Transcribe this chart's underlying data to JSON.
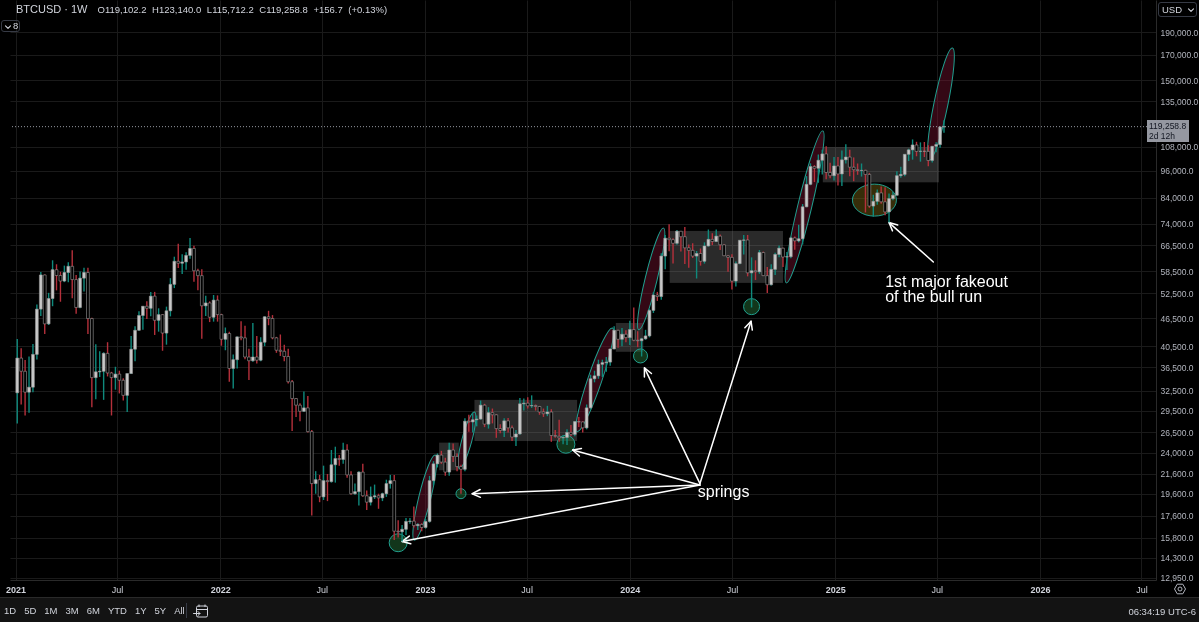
{
  "chart_data": {
    "type": "candlestick",
    "title": "BTCUSD · 1W",
    "subtitle": "O119,102.2 H123,140.0 L115,712.2 C119,258.8 +156.7 (+0.13%)",
    "x": [
      "2021-01-04",
      "2021-01-11",
      "2021-01-18",
      "2021-01-25",
      "2021-02-01",
      "2021-02-08",
      "2021-02-15",
      "2021-02-22",
      "2021-03-01",
      "2021-03-08",
      "2021-03-15",
      "2021-03-22",
      "2021-03-29",
      "2021-04-05",
      "2021-04-12",
      "2021-04-19",
      "2021-04-26",
      "2021-05-03",
      "2021-05-10",
      "2021-05-17",
      "2021-05-24",
      "2021-05-31",
      "2021-06-07",
      "2021-06-14",
      "2021-06-21",
      "2021-06-28",
      "2021-07-05",
      "2021-07-12",
      "2021-07-19",
      "2021-07-26",
      "2021-08-02",
      "2021-08-09",
      "2021-08-16",
      "2021-08-23",
      "2021-08-30",
      "2021-09-06",
      "2021-09-13",
      "2021-09-20",
      "2021-09-27",
      "2021-10-04",
      "2021-10-11",
      "2021-10-18",
      "2021-10-25",
      "2021-11-01",
      "2021-11-08",
      "2021-11-15",
      "2021-11-22",
      "2021-11-29",
      "2021-12-06",
      "2021-12-13",
      "2021-12-20",
      "2021-12-27",
      "2022-01-03",
      "2022-01-10",
      "2022-01-17",
      "2022-01-24",
      "2022-01-31",
      "2022-02-07",
      "2022-02-14",
      "2022-02-21",
      "2022-02-28",
      "2022-03-07",
      "2022-03-14",
      "2022-03-21",
      "2022-03-28",
      "2022-04-04",
      "2022-04-11",
      "2022-04-18",
      "2022-04-25",
      "2022-05-02",
      "2022-05-09",
      "2022-05-16",
      "2022-05-23",
      "2022-05-30",
      "2022-06-06",
      "2022-06-13",
      "2022-06-20",
      "2022-06-27",
      "2022-07-04",
      "2022-07-11",
      "2022-07-18",
      "2022-07-25",
      "2022-08-01",
      "2022-08-08",
      "2022-08-15",
      "2022-08-22",
      "2022-08-29",
      "2022-09-05",
      "2022-09-12",
      "2022-09-19",
      "2022-09-26",
      "2022-10-03",
      "2022-10-10",
      "2022-10-17",
      "2022-10-24",
      "2022-10-31",
      "2022-11-07",
      "2022-11-14",
      "2022-11-21",
      "2022-11-28",
      "2022-12-05",
      "2022-12-12",
      "2022-12-19",
      "2022-12-26",
      "2023-01-02",
      "2023-01-09",
      "2023-01-16",
      "2023-01-23",
      "2023-01-30",
      "2023-02-06",
      "2023-02-13",
      "2023-02-20",
      "2023-02-27",
      "2023-03-06",
      "2023-03-13",
      "2023-03-20",
      "2023-03-27",
      "2023-04-03",
      "2023-04-10",
      "2023-04-17",
      "2023-04-24",
      "2023-05-01",
      "2023-05-08",
      "2023-05-15",
      "2023-05-22",
      "2023-05-29",
      "2023-06-05",
      "2023-06-12",
      "2023-06-19",
      "2023-06-26",
      "2023-07-03",
      "2023-07-10",
      "2023-07-17",
      "2023-07-24",
      "2023-07-31",
      "2023-08-07",
      "2023-08-14",
      "2023-08-21",
      "2023-08-28",
      "2023-09-04",
      "2023-09-11",
      "2023-09-18",
      "2023-09-25",
      "2023-10-02",
      "2023-10-09",
      "2023-10-16",
      "2023-10-23",
      "2023-10-30",
      "2023-11-06",
      "2023-11-13",
      "2023-11-20",
      "2023-11-27",
      "2023-12-04",
      "2023-12-11",
      "2023-12-18",
      "2023-12-25",
      "2024-01-01",
      "2024-01-08",
      "2024-01-15",
      "2024-01-22",
      "2024-01-29",
      "2024-02-05",
      "2024-02-12",
      "2024-02-19",
      "2024-02-26",
      "2024-03-04",
      "2024-03-11",
      "2024-03-18",
      "2024-03-25",
      "2024-04-01",
      "2024-04-08",
      "2024-04-15",
      "2024-04-22",
      "2024-04-29",
      "2024-05-06",
      "2024-05-13",
      "2024-05-20",
      "2024-05-27",
      "2024-06-03",
      "2024-06-10",
      "2024-06-17",
      "2024-06-24",
      "2024-07-01",
      "2024-07-08",
      "2024-07-15",
      "2024-07-22",
      "2024-07-29",
      "2024-08-05",
      "2024-08-12",
      "2024-08-19",
      "2024-08-26",
      "2024-09-02",
      "2024-09-09",
      "2024-09-16",
      "2024-09-23",
      "2024-09-30",
      "2024-10-07",
      "2024-10-14",
      "2024-10-21",
      "2024-10-28",
      "2024-11-04",
      "2024-11-11",
      "2024-11-18",
      "2024-11-25",
      "2024-12-02",
      "2024-12-09",
      "2024-12-16",
      "2024-12-23",
      "2024-12-30",
      "2025-01-06",
      "2025-01-13",
      "2025-01-20",
      "2025-01-27",
      "2025-02-03",
      "2025-02-10",
      "2025-02-17",
      "2025-02-24",
      "2025-03-03",
      "2025-03-10",
      "2025-03-17",
      "2025-03-24",
      "2025-03-31",
      "2025-04-07",
      "2025-04-14",
      "2025-04-21",
      "2025-04-28",
      "2025-05-05",
      "2025-05-12",
      "2025-05-19",
      "2025-05-26",
      "2025-06-02",
      "2025-06-09",
      "2025-06-16",
      "2025-06-23",
      "2025-06-30",
      "2025-07-07",
      "2025-07-14"
    ],
    "ohlc": [
      [
        32200,
        41950,
        27700,
        38200
      ],
      [
        38200,
        40100,
        30400,
        35800
      ],
      [
        35800,
        37850,
        28800,
        32300
      ],
      [
        32300,
        38500,
        29200,
        33100
      ],
      [
        33100,
        40950,
        32300,
        38900
      ],
      [
        38900,
        49700,
        37950,
        48600
      ],
      [
        48600,
        58350,
        47000,
        57500
      ],
      [
        57500,
        57600,
        43000,
        45200
      ],
      [
        45200,
        52650,
        44950,
        51200
      ],
      [
        51200,
        61800,
        49300,
        59000
      ],
      [
        59000,
        60600,
        53300,
        57350
      ],
      [
        57350,
        58400,
        50400,
        55800
      ],
      [
        55800,
        60200,
        55500,
        58200
      ],
      [
        58200,
        61200,
        55500,
        60000
      ],
      [
        60000,
        64900,
        51300,
        56200
      ],
      [
        56200,
        57500,
        47500,
        49000
      ],
      [
        49000,
        58500,
        48800,
        56600
      ],
      [
        56600,
        59600,
        53000,
        58200
      ],
      [
        58200,
        59600,
        43000,
        46400
      ],
      [
        46400,
        46600,
        30000,
        34700
      ],
      [
        34700,
        40900,
        31200,
        35700
      ],
      [
        35700,
        39500,
        34800,
        35800
      ],
      [
        35800,
        39300,
        31100,
        39100
      ],
      [
        39100,
        41300,
        34900,
        35500
      ],
      [
        35500,
        35700,
        28800,
        34700
      ],
      [
        34700,
        36600,
        32700,
        35300
      ],
      [
        35300,
        35900,
        32100,
        34250
      ],
      [
        34250,
        34600,
        31000,
        31800
      ],
      [
        31800,
        35400,
        29300,
        35400
      ],
      [
        35400,
        42600,
        35300,
        39900
      ],
      [
        39900,
        44700,
        37600,
        43800
      ],
      [
        43800,
        48100,
        43700,
        47100
      ],
      [
        47100,
        49300,
        43900,
        49300
      ],
      [
        49300,
        50500,
        46300,
        48800
      ],
      [
        48800,
        52900,
        46900,
        51800
      ],
      [
        51800,
        52900,
        42800,
        46000
      ],
      [
        46000,
        48800,
        43500,
        47300
      ],
      [
        47300,
        47400,
        39600,
        43200
      ],
      [
        43200,
        49200,
        40800,
        48200
      ],
      [
        48200,
        56600,
        46900,
        54900
      ],
      [
        54900,
        62900,
        53900,
        61500
      ],
      [
        61500,
        67000,
        59500,
        60900
      ],
      [
        60900,
        63700,
        57800,
        61300
      ],
      [
        61300,
        64300,
        59000,
        63300
      ],
      [
        63300,
        69000,
        62300,
        65500
      ],
      [
        65500,
        66400,
        55600,
        58700
      ],
      [
        58700,
        59300,
        53300,
        57300
      ],
      [
        57300,
        59100,
        42000,
        49400
      ],
      [
        49400,
        51900,
        47000,
        50100
      ],
      [
        50100,
        50500,
        45600,
        46700
      ],
      [
        46700,
        52100,
        45700,
        50800
      ],
      [
        50800,
        52000,
        45700,
        47300
      ],
      [
        47300,
        47500,
        40600,
        41900
      ],
      [
        41900,
        44400,
        39700,
        43100
      ],
      [
        43100,
        43500,
        34000,
        36300
      ],
      [
        36300,
        38900,
        32900,
        37900
      ],
      [
        37900,
        42500,
        36300,
        42400
      ],
      [
        42400,
        45800,
        41700,
        42200
      ],
      [
        42200,
        44800,
        38000,
        38400
      ],
      [
        38400,
        40000,
        34300,
        37700
      ],
      [
        37700,
        45400,
        37500,
        38400
      ],
      [
        38400,
        42600,
        37200,
        37800
      ],
      [
        37800,
        42300,
        37600,
        41300
      ],
      [
        41300,
        46900,
        40500,
        46800
      ],
      [
        46800,
        48200,
        44900,
        46400
      ],
      [
        46400,
        47200,
        41900,
        42200
      ],
      [
        42200,
        42400,
        39200,
        39700
      ],
      [
        39700,
        42900,
        38600,
        39500
      ],
      [
        39500,
        40800,
        37600,
        38500
      ],
      [
        38500,
        40000,
        33700,
        34000
      ],
      [
        34000,
        34300,
        26700,
        31300
      ],
      [
        31300,
        31400,
        28600,
        30300
      ],
      [
        30300,
        30600,
        28000,
        29400
      ],
      [
        29400,
        32400,
        29300,
        29900
      ],
      [
        29900,
        31700,
        26500,
        26600
      ],
      [
        26600,
        26800,
        17600,
        20600
      ],
      [
        20600,
        21900,
        19600,
        21000
      ],
      [
        21000,
        21500,
        18800,
        19300
      ],
      [
        19300,
        22500,
        19000,
        20900
      ],
      [
        20900,
        21600,
        18900,
        20800
      ],
      [
        20800,
        24300,
        20700,
        22600
      ],
      [
        22600,
        24700,
        20700,
        23300
      ],
      [
        23300,
        23700,
        22500,
        23200
      ],
      [
        23200,
        25200,
        22700,
        24300
      ],
      [
        24300,
        25000,
        21200,
        21500
      ],
      [
        21500,
        21900,
        19500,
        19600
      ],
      [
        19600,
        20600,
        19500,
        19800
      ],
      [
        19800,
        21900,
        18500,
        21800
      ],
      [
        21800,
        22700,
        19300,
        19400
      ],
      [
        19400,
        19900,
        18100,
        18800
      ],
      [
        18800,
        20300,
        18500,
        19300
      ],
      [
        19300,
        20500,
        19100,
        19400
      ],
      [
        19400,
        19600,
        18200,
        19200
      ],
      [
        19200,
        19700,
        18900,
        19600
      ],
      [
        19600,
        21000,
        19300,
        20600
      ],
      [
        20600,
        21500,
        20100,
        20900
      ],
      [
        20900,
        21500,
        15600,
        16300
      ],
      [
        16300,
        17200,
        15800,
        16250
      ],
      [
        16250,
        16800,
        15500,
        16450
      ],
      [
        16450,
        17400,
        16000,
        17100
      ],
      [
        17100,
        17400,
        16900,
        17130
      ],
      [
        17130,
        18400,
        16600,
        16750
      ],
      [
        16750,
        16950,
        16400,
        16850
      ],
      [
        16850,
        16950,
        16300,
        16600
      ],
      [
        16600,
        17300,
        16500,
        17100
      ],
      [
        17100,
        21400,
        17000,
        20900
      ],
      [
        20900,
        23000,
        20400,
        22700
      ],
      [
        22700,
        23900,
        22300,
        23700
      ],
      [
        23700,
        24200,
        22700,
        22900
      ],
      [
        22900,
        23400,
        21400,
        21800
      ],
      [
        21800,
        25200,
        21400,
        24300
      ],
      [
        24300,
        25100,
        22900,
        23550
      ],
      [
        23550,
        23900,
        21900,
        22400
      ],
      [
        22400,
        22600,
        19600,
        22100
      ],
      [
        22100,
        28400,
        21900,
        28000
      ],
      [
        28000,
        28900,
        26600,
        27900
      ],
      [
        27900,
        29200,
        26500,
        28200
      ],
      [
        28200,
        28800,
        27300,
        28300
      ],
      [
        28300,
        31000,
        28200,
        30300
      ],
      [
        30300,
        30500,
        27200,
        27600
      ],
      [
        27600,
        30000,
        27000,
        29200
      ],
      [
        29200,
        29800,
        27700,
        28900
      ],
      [
        28900,
        29000,
        25800,
        27000
      ],
      [
        27000,
        27600,
        26400,
        26750
      ],
      [
        26750,
        28400,
        25900,
        28050
      ],
      [
        28050,
        28450,
        26500,
        27100
      ],
      [
        27100,
        27400,
        25400,
        25900
      ],
      [
        25900,
        26800,
        24800,
        26300
      ],
      [
        26300,
        31400,
        26200,
        30500
      ],
      [
        30500,
        31300,
        29500,
        30600
      ],
      [
        30600,
        31500,
        29800,
        30200
      ],
      [
        30200,
        31800,
        29900,
        30250
      ],
      [
        30250,
        30400,
        29500,
        30100
      ],
      [
        30100,
        30200,
        28900,
        29300
      ],
      [
        29300,
        29800,
        28600,
        29050
      ],
      [
        29050,
        30200,
        28700,
        29300
      ],
      [
        29300,
        29700,
        25300,
        26100
      ],
      [
        26100,
        26800,
        25800,
        26000
      ],
      [
        26000,
        28200,
        25300,
        25800
      ],
      [
        25800,
        26100,
        25000,
        25850
      ],
      [
        25850,
        26900,
        24900,
        26500
      ],
      [
        26500,
        27500,
        26000,
        26250
      ],
      [
        26250,
        28000,
        26000,
        27950
      ],
      [
        27950,
        28600,
        27200,
        27900
      ],
      [
        27900,
        28000,
        26500,
        27100
      ],
      [
        27100,
        30400,
        26900,
        29900
      ],
      [
        29900,
        35200,
        29700,
        34500
      ],
      [
        34500,
        35900,
        33900,
        35000
      ],
      [
        35000,
        37900,
        34500,
        37050
      ],
      [
        37050,
        37900,
        34800,
        37350
      ],
      [
        37350,
        38400,
        35700,
        37450
      ],
      [
        37450,
        40000,
        36800,
        39950
      ],
      [
        39950,
        44700,
        39900,
        43800
      ],
      [
        43800,
        43900,
        40200,
        41900
      ],
      [
        41900,
        44300,
        40500,
        42950
      ],
      [
        42950,
        43800,
        41300,
        42250
      ],
      [
        42250,
        45900,
        40750,
        43950
      ],
      [
        43950,
        49000,
        41500,
        41700
      ],
      [
        41700,
        43600,
        40300,
        41600
      ],
      [
        41600,
        42200,
        38500,
        42000
      ],
      [
        42000,
        43900,
        41800,
        42600
      ],
      [
        42600,
        48600,
        42300,
        48300
      ],
      [
        48300,
        52800,
        47700,
        52100
      ],
      [
        52100,
        52900,
        50600,
        51700
      ],
      [
        51700,
        64000,
        50900,
        63100
      ],
      [
        63100,
        70000,
        59100,
        68900
      ],
      [
        68900,
        73800,
        64600,
        68400
      ],
      [
        68400,
        68900,
        60800,
        67200
      ],
      [
        67200,
        71700,
        66700,
        71300
      ],
      [
        71300,
        71400,
        64500,
        69400
      ],
      [
        69400,
        72800,
        60700,
        65700
      ],
      [
        65700,
        66800,
        59600,
        64900
      ],
      [
        64900,
        67200,
        62500,
        63100
      ],
      [
        63100,
        64700,
        56500,
        63900
      ],
      [
        63900,
        65500,
        60200,
        61500
      ],
      [
        61500,
        67500,
        60800,
        66300
      ],
      [
        66300,
        71900,
        66100,
        68500
      ],
      [
        68500,
        70600,
        66600,
        67800
      ],
      [
        67800,
        71950,
        67600,
        69600
      ],
      [
        69600,
        70200,
        65000,
        66700
      ],
      [
        66700,
        66900,
        63100,
        63200
      ],
      [
        63200,
        63400,
        58400,
        62700
      ],
      [
        62700,
        63700,
        53500,
        55800
      ],
      [
        55800,
        61400,
        54300,
        60800
      ],
      [
        60800,
        68300,
        60600,
        68200
      ],
      [
        68200,
        70000,
        63600,
        68300
      ],
      [
        68300,
        70000,
        57100,
        58100
      ],
      [
        58100,
        62700,
        49000,
        58700
      ],
      [
        58700,
        61800,
        56100,
        58400
      ],
      [
        58400,
        65000,
        57800,
        64200
      ],
      [
        64200,
        64500,
        57200,
        57300
      ],
      [
        57300,
        59800,
        52600,
        54800
      ],
      [
        54800,
        60600,
        54600,
        59100
      ],
      [
        59100,
        64100,
        57500,
        63600
      ],
      [
        63600,
        66500,
        62700,
        65600
      ],
      [
        65600,
        65700,
        59800,
        62800
      ],
      [
        62800,
        64400,
        58900,
        62900
      ],
      [
        62900,
        69400,
        62400,
        69000
      ],
      [
        69000,
        69500,
        65100,
        68000
      ],
      [
        68000,
        73600,
        67500,
        68700
      ],
      [
        68700,
        81500,
        66800,
        80400
      ],
      [
        80400,
        93500,
        80200,
        89800
      ],
      [
        89800,
        99600,
        89400,
        98000
      ],
      [
        98000,
        98700,
        90800,
        97200
      ],
      [
        97200,
        104000,
        90500,
        101100
      ],
      [
        101100,
        106500,
        94200,
        104300
      ],
      [
        104300,
        108300,
        92100,
        95200
      ],
      [
        95200,
        99900,
        92500,
        93700
      ],
      [
        93700,
        102700,
        91500,
        98300
      ],
      [
        98300,
        102700,
        89300,
        94500
      ],
      [
        94500,
        106000,
        89100,
        101300
      ],
      [
        101300,
        109400,
        99500,
        102700
      ],
      [
        102700,
        106400,
        93400,
        97700
      ],
      [
        97700,
        102500,
        91200,
        96500
      ],
      [
        96500,
        99500,
        94100,
        96100
      ],
      [
        96100,
        99500,
        93300,
        96200
      ],
      [
        96200,
        96500,
        78200,
        94300
      ],
      [
        94300,
        95000,
        80000,
        80700
      ],
      [
        80700,
        85300,
        76600,
        82600
      ],
      [
        82600,
        87500,
        81200,
        86100
      ],
      [
        86100,
        88800,
        81600,
        82400
      ],
      [
        82400,
        88500,
        77100,
        78400
      ],
      [
        78400,
        85800,
        74400,
        83700
      ],
      [
        83700,
        86500,
        83000,
        85100
      ],
      [
        85100,
        95800,
        85000,
        93700
      ],
      [
        93700,
        97900,
        92800,
        94300
      ],
      [
        94300,
        104300,
        93400,
        104100
      ],
      [
        104100,
        107000,
        100700,
        106400
      ],
      [
        106400,
        112000,
        101400,
        109000
      ],
      [
        109000,
        110700,
        103100,
        105600
      ],
      [
        105600,
        110400,
        100400,
        105700
      ],
      [
        105700,
        110600,
        102700,
        105600
      ],
      [
        105600,
        108900,
        98200,
        101000
      ],
      [
        101000,
        108500,
        100000,
        108300
      ],
      [
        108300,
        110500,
        105100,
        109200
      ],
      [
        109200,
        119500,
        107500,
        119100
      ],
      [
        119102.2,
        123140,
        115712.2,
        119258.8
      ]
    ],
    "colors": [
      "#c8c8c8",
      "#000000",
      "#000000",
      "#c8c8c8",
      "#c8c8c8",
      "#c8c8c8",
      "#c8c8c8",
      "#000000",
      "#c8c8c8",
      "#c8c8c8",
      "#000000",
      "#000000",
      "#c8c8c8",
      "#c8c8c8",
      "#000000",
      "#000000",
      "#c8c8c8",
      "#c8c8c8",
      "#000000",
      "#000000",
      "#c8c8c8",
      "#c8c8c8",
      "#c8c8c8",
      "#000000",
      "#000000",
      "#c8c8c8",
      "#000000",
      "#000000",
      "#c8c8c8",
      "#c8c8c8",
      "#c8c8c8",
      "#c8c8c8",
      "#c8c8c8",
      "#000000",
      "#c8c8c8",
      "#000000",
      "#c8c8c8",
      "#000000",
      "#c8c8c8",
      "#c8c8c8",
      "#c8c8c8",
      "#000000",
      "#c8c8c8",
      "#c8c8c8",
      "#c8c8c8",
      "#000000",
      "#000000",
      "#000000",
      "#c8c8c8",
      "#000000",
      "#c8c8c8",
      "#000000",
      "#000000",
      "#c8c8c8",
      "#000000",
      "#c8c8c8",
      "#c8c8c8",
      "#000000",
      "#000000",
      "#000000",
      "#c8c8c8",
      "#000000",
      "#c8c8c8",
      "#c8c8c8",
      "#000000",
      "#000000",
      "#000000",
      "#000000",
      "#000000",
      "#000000",
      "#000000",
      "#000000",
      "#000000",
      "#c8c8c8",
      "#000000",
      "#000000",
      "#c8c8c8",
      "#000000",
      "#c8c8c8",
      "#000000",
      "#c8c8c8",
      "#c8c8c8",
      "#000000",
      "#c8c8c8",
      "#000000",
      "#000000",
      "#c8c8c8",
      "#c8c8c8",
      "#000000",
      "#000000",
      "#c8c8c8",
      "#c8c8c8",
      "#000000",
      "#c8c8c8",
      "#c8c8c8",
      "#c8c8c8",
      "#000000",
      "#000000",
      "#c8c8c8",
      "#c8c8c8",
      "#c8c8c8",
      "#000000",
      "#c8c8c8",
      "#000000",
      "#c8c8c8",
      "#c8c8c8",
      "#c8c8c8",
      "#c8c8c8",
      "#000000",
      "#000000",
      "#c8c8c8",
      "#000000",
      "#000000",
      "#000000",
      "#c8c8c8",
      "#000000",
      "#c8c8c8",
      "#c8c8c8",
      "#c8c8c8",
      "#000000",
      "#c8c8c8",
      "#000000",
      "#000000",
      "#000000",
      "#c8c8c8",
      "#000000",
      "#000000",
      "#c8c8c8",
      "#c8c8c8",
      "#c8c8c8",
      "#000000",
      "#c8c8c8",
      "#000000",
      "#000000",
      "#000000",
      "#c8c8c8",
      "#000000",
      "#000000",
      "#000000",
      "#c8c8c8",
      "#c8c8c8",
      "#000000",
      "#c8c8c8",
      "#000000",
      "#000000",
      "#c8c8c8",
      "#c8c8c8",
      "#c8c8c8",
      "#c8c8c8",
      "#c8c8c8",
      "#c8c8c8",
      "#c8c8c8",
      "#c8c8c8",
      "#000000",
      "#c8c8c8",
      "#000000",
      "#c8c8c8",
      "#000000",
      "#000000",
      "#c8c8c8",
      "#c8c8c8",
      "#c8c8c8",
      "#c8c8c8",
      "#000000",
      "#c8c8c8",
      "#c8c8c8",
      "#000000",
      "#000000",
      "#c8c8c8",
      "#000000",
      "#000000",
      "#000000",
      "#000000",
      "#c8c8c8",
      "#000000",
      "#c8c8c8",
      "#c8c8c8",
      "#000000",
      "#c8c8c8",
      "#000000",
      "#000000",
      "#000000",
      "#000000",
      "#c8c8c8",
      "#c8c8c8",
      "#c8c8c8",
      "#000000",
      "#c8c8c8",
      "#000000",
      "#c8c8c8",
      "#000000",
      "#000000",
      "#c8c8c8",
      "#c8c8c8",
      "#c8c8c8",
      "#000000",
      "#c8c8c8",
      "#c8c8c8",
      "#000000",
      "#c8c8c8",
      "#c8c8c8",
      "#c8c8c8",
      "#c8c8c8",
      "#000000",
      "#c8c8c8",
      "#c8c8c8",
      "#000000",
      "#000000",
      "#c8c8c8",
      "#000000",
      "#c8c8c8",
      "#c8c8c8",
      "#000000",
      "#000000",
      "#000000",
      "#c8c8c8",
      "#000000",
      "#000000",
      "#c8c8c8",
      "#c8c8c8",
      "#000000",
      "#000000",
      "#c8c8c8",
      "#c8c8c8",
      "#c8c8c8",
      "#c8c8c8",
      "#c8c8c8",
      "#c8c8c8",
      "#c8c8c8",
      "#000000",
      "#c8c8c8",
      "#000000",
      "#000000",
      "#c8c8c8",
      "#c8c8c8",
      "#c8c8c8",
      "#c8c8c8"
    ],
    "xlim": [
      "2020-12-31",
      "2026-07-18"
    ],
    "xticks": [
      {
        "value": "2021-01-01",
        "label": "2021"
      },
      {
        "value": "2021-07-01",
        "label": "Jul"
      },
      {
        "value": "2022-01-01",
        "label": "2022"
      },
      {
        "value": "2022-07-01",
        "label": "Jul"
      },
      {
        "value": "2023-01-01",
        "label": "2023"
      },
      {
        "value": "2023-07-01",
        "label": "Jul"
      },
      {
        "value": "2024-01-01",
        "label": "2024"
      },
      {
        "value": "2024-07-01",
        "label": "Jul"
      },
      {
        "value": "2025-01-01",
        "label": "2025"
      },
      {
        "value": "2025-07-01",
        "label": "Jul"
      },
      {
        "value": "2026-01-01",
        "label": "2026"
      },
      {
        "value": "2026-07-01",
        "label": "Jul"
      }
    ],
    "ylim": [
      12820,
      222400
    ],
    "yticks": [
      {
        "value": 190000,
        "label": "190,000.0"
      },
      {
        "value": 170000,
        "label": "170,000.0"
      },
      {
        "value": 150000,
        "label": "150,000.0"
      },
      {
        "value": 135000,
        "label": "135,000.0"
      },
      {
        "value": 108000,
        "label": "108,000.0"
      },
      {
        "value": 96000,
        "label": "96,000.0"
      },
      {
        "value": 84000,
        "label": "84,000.0"
      },
      {
        "value": 74000,
        "label": "74,000.0"
      },
      {
        "value": 66500,
        "label": "66,500.0"
      },
      {
        "value": 58500,
        "label": "58,500.0"
      },
      {
        "value": 52500,
        "label": "52,500.0"
      },
      {
        "value": 46500,
        "label": "46,500.0"
      },
      {
        "value": 40500,
        "label": "40,500.0"
      },
      {
        "value": 36500,
        "label": "36,500.0"
      },
      {
        "value": 32500,
        "label": "32,500.0"
      },
      {
        "value": 29500,
        "label": "29,500.0"
      },
      {
        "value": 26500,
        "label": "26,500.0"
      },
      {
        "value": 24000,
        "label": "24,000.0"
      },
      {
        "value": 21600,
        "label": "21,600.0"
      },
      {
        "value": 19600,
        "label": "19,600.0"
      },
      {
        "value": 17600,
        "label": "17,600.0"
      },
      {
        "value": 15800,
        "label": "15,800.0"
      },
      {
        "value": 14300,
        "label": "14,300.0"
      },
      {
        "value": 12950,
        "label": "12,950.0"
      }
    ],
    "log": true,
    "grid": true,
    "ref_lines": [
      {
        "axis": "y",
        "value": 119258.8,
        "label": "119,258.8",
        "color": "#9598a1",
        "line_style": "dotted"
      }
    ],
    "annotations": [
      {
        "text": "springs",
        "x": "2022-11-21",
        "y": 15500
      },
      {
        "text": "1st major fakeout of the bull run",
        "x": "2025-04-07",
        "y": 74400
      },
      "2d 12h",
      "USD",
      "8",
      "1D",
      "5D",
      "1M",
      "3M",
      "6M",
      "YTD",
      "1Y",
      "5Y",
      "All",
      "06:34:19 UTC-6"
    ]
  }
}
